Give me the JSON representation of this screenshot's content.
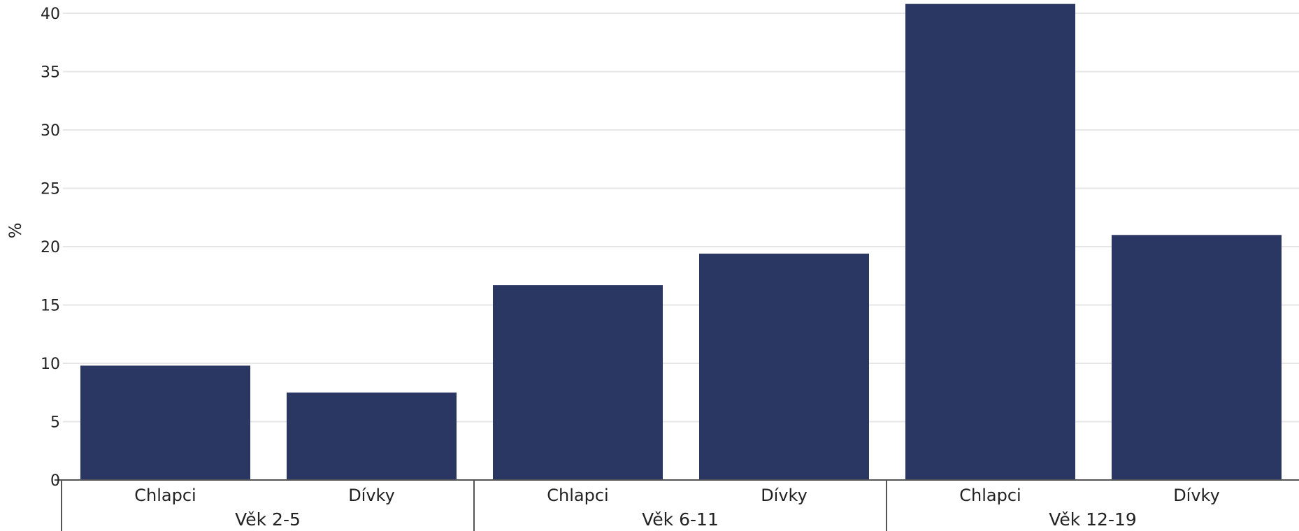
{
  "chart_data": {
    "type": "bar",
    "ylabel": "%",
    "xlabel": "",
    "ylim": [
      0,
      40
    ],
    "yticks": [
      0,
      5,
      10,
      15,
      20,
      25,
      30,
      35,
      40
    ],
    "grid": true,
    "legend": "none",
    "bar_color": "#2b3763",
    "grid_color": "#e6e6e6",
    "axis_color": "#555555",
    "groups": [
      {
        "label": "Věk 2-5",
        "bars": [
          {
            "category": "Chlapci",
            "value": 9.8
          },
          {
            "category": "Dívky",
            "value": 7.5
          }
        ]
      },
      {
        "label": "Věk 6-11",
        "bars": [
          {
            "category": "Chlapci",
            "value": 16.7
          },
          {
            "category": "Dívky",
            "value": 19.4
          }
        ]
      },
      {
        "label": "Věk 12-19",
        "bars": [
          {
            "category": "Chlapci",
            "value": 40.8
          },
          {
            "category": "Dívky",
            "value": 21.0
          }
        ]
      }
    ]
  }
}
